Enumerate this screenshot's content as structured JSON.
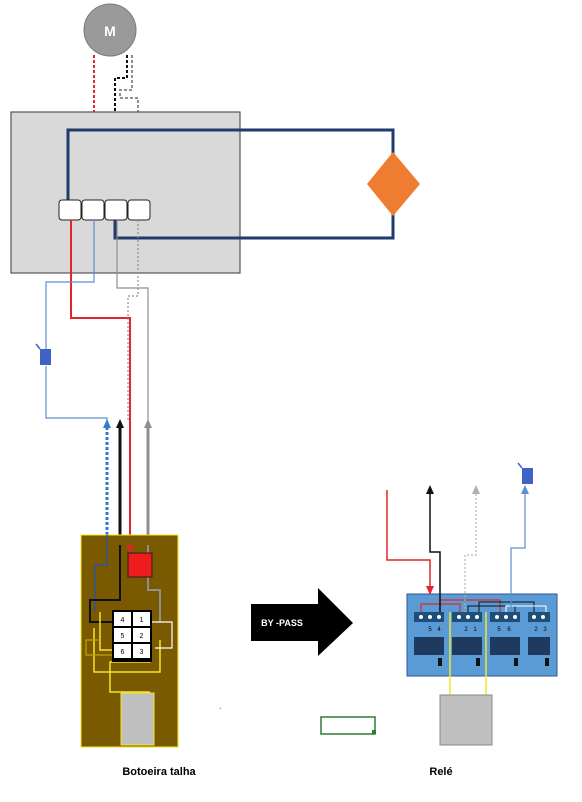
{
  "motor": {
    "label": "M"
  },
  "bypass": {
    "label": "BY -PASS"
  },
  "switch_block": {
    "terminals": [
      "4",
      "1",
      "5",
      "2",
      "6",
      "3"
    ]
  },
  "relay": {
    "terminal_labels": [
      "5",
      "4",
      "2",
      "1",
      "5",
      "6",
      "2",
      "3"
    ]
  },
  "captions": {
    "left": "Botoeira talha",
    "right": "Relé"
  },
  "colors": {
    "red": "#e0262a",
    "black": "#111111",
    "gray": "#8f8f8f",
    "blue": "#5b8fd0",
    "yellow": "#f2e62a",
    "navy": "#1f3a6b",
    "orange": "#ee7d31",
    "olive": "#7a5a00",
    "relay_blue": "#5b9bd5"
  }
}
